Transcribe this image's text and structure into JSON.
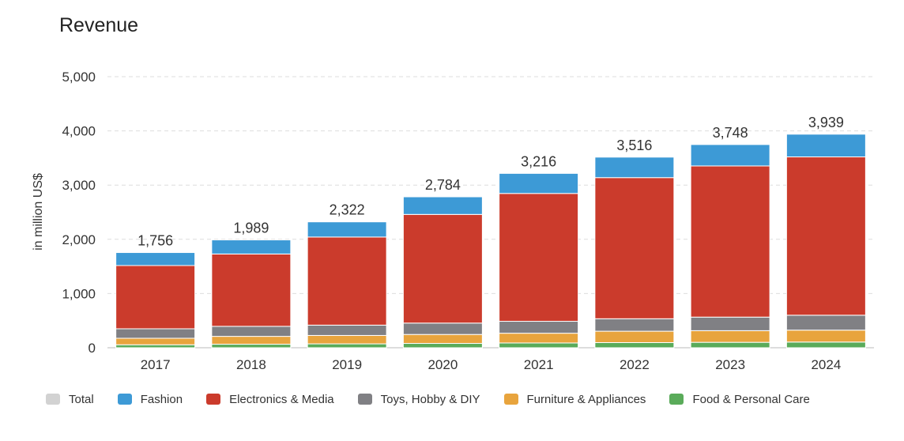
{
  "chart_data": {
    "type": "bar",
    "stacked": true,
    "title": "Revenue",
    "ylabel": "in million US$",
    "xlabel": "",
    "ylim": [
      0,
      5000
    ],
    "yticks": [
      0,
      1000,
      2000,
      3000,
      4000,
      5000
    ],
    "ytick_labels": [
      "0",
      "1,000",
      "2,000",
      "3,000",
      "4,000",
      "5,000"
    ],
    "grid": true,
    "legend_position": "bottom",
    "categories": [
      "2017",
      "2018",
      "2019",
      "2020",
      "2021",
      "2022",
      "2023",
      "2024"
    ],
    "totals": [
      1756,
      1989,
      2322,
      2784,
      3216,
      3516,
      3748,
      3939
    ],
    "total_labels": [
      "1,756",
      "1,989",
      "2,322",
      "2,784",
      "3,216",
      "3,516",
      "3,748",
      "3,939"
    ],
    "series": [
      {
        "name": "Food & Personal Care",
        "color": "#5aab5a",
        "values": [
          55,
          65,
          72,
          80,
          88,
          95,
          100,
          105
        ]
      },
      {
        "name": "Furniture & Appliances",
        "color": "#e8a43d",
        "values": [
          120,
          145,
          155,
          165,
          180,
          210,
          215,
          220
        ]
      },
      {
        "name": "Toys, Hobby & DIY",
        "color": "#808084",
        "values": [
          175,
          185,
          190,
          210,
          220,
          230,
          250,
          275
        ]
      },
      {
        "name": "Electronics & Media",
        "color": "#cb3b2c",
        "values": [
          1166,
          1334,
          1625,
          2004,
          2358,
          2603,
          2788,
          2920
        ]
      },
      {
        "name": "Fashion",
        "color": "#3d9ad6",
        "values": [
          240,
          260,
          280,
          325,
          370,
          378,
          395,
          419
        ]
      }
    ],
    "legend": [
      {
        "name": "Total",
        "color": "#d2d2d2"
      },
      {
        "name": "Fashion",
        "color": "#3d9ad6"
      },
      {
        "name": "Electronics & Media",
        "color": "#cb3b2c"
      },
      {
        "name": "Toys, Hobby & DIY",
        "color": "#808084"
      },
      {
        "name": "Furniture & Appliances",
        "color": "#e8a43d"
      },
      {
        "name": "Food & Personal Care",
        "color": "#5aab5a"
      }
    ]
  }
}
